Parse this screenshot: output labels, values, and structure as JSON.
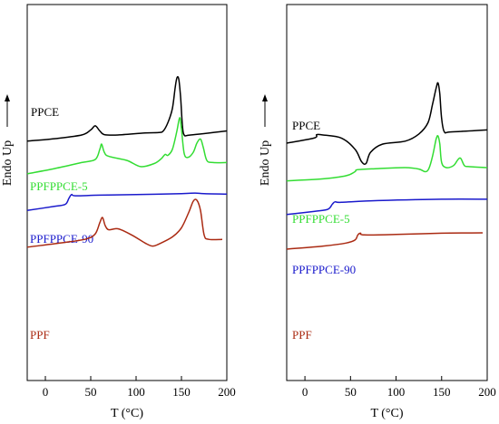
{
  "chart_data": [
    {
      "type": "line",
      "panel": "left",
      "xlabel": "T (°C)",
      "ylabel": "Endo Up",
      "xlim": [
        -20,
        200
      ],
      "xticks": [
        0,
        50,
        100,
        150,
        200
      ],
      "grid": false,
      "legend": "none (labels placed beside each curve)",
      "series": [
        {
          "name": "PPCE",
          "color": "#000000",
          "offset": 2.5,
          "points": [
            [
              -20,
              0
            ],
            [
              10,
              0.12
            ],
            [
              40,
              0.3
            ],
            [
              50,
              0.55
            ],
            [
              55,
              0.75
            ],
            [
              60,
              0.5
            ],
            [
              65,
              0.32
            ],
            [
              80,
              0.3
            ],
            [
              110,
              0.4
            ],
            [
              125,
              0.42
            ],
            [
              130,
              0.5
            ],
            [
              135,
              0.9
            ],
            [
              140,
              1.6
            ],
            [
              143,
              2.6
            ],
            [
              145,
              3.1
            ],
            [
              147,
              3.05
            ],
            [
              149,
              2.2
            ],
            [
              151,
              0.8
            ],
            [
              153,
              0.3
            ],
            [
              160,
              0.3
            ],
            [
              200,
              0.5
            ]
          ]
        },
        {
          "name": "PPFPPCE-5",
          "color": "#33dd33",
          "offset": 0.9,
          "points": [
            [
              -20,
              0
            ],
            [
              10,
              0.25
            ],
            [
              40,
              0.55
            ],
            [
              55,
              0.7
            ],
            [
              60,
              1.2
            ],
            [
              62,
              1.45
            ],
            [
              65,
              1.05
            ],
            [
              70,
              0.85
            ],
            [
              90,
              0.65
            ],
            [
              105,
              0.35
            ],
            [
              120,
              0.5
            ],
            [
              128,
              0.75
            ],
            [
              132,
              0.95
            ],
            [
              135,
              0.9
            ],
            [
              140,
              1.2
            ],
            [
              145,
              2.1
            ],
            [
              148,
              2.75
            ],
            [
              150,
              2.2
            ],
            [
              153,
              1.0
            ],
            [
              157,
              0.8
            ],
            [
              163,
              1.05
            ],
            [
              167,
              1.5
            ],
            [
              171,
              1.7
            ],
            [
              174,
              1.3
            ],
            [
              178,
              0.65
            ],
            [
              185,
              0.55
            ],
            [
              200,
              0.55
            ]
          ]
        },
        {
          "name": "PPFPPCE-90",
          "color": "#1a1acc",
          "offset": -0.9,
          "points": [
            [
              -20,
              0
            ],
            [
              10,
              0.2
            ],
            [
              22,
              0.3
            ],
            [
              26,
              0.6
            ],
            [
              29,
              0.78
            ],
            [
              33,
              0.72
            ],
            [
              60,
              0.75
            ],
            [
              100,
              0.78
            ],
            [
              150,
              0.82
            ],
            [
              165,
              0.85
            ],
            [
              175,
              0.82
            ],
            [
              200,
              0.8
            ]
          ]
        },
        {
          "name": "PPF",
          "color": "#aa2a12",
          "offset": -2.7,
          "points": [
            [
              -20,
              0
            ],
            [
              20,
              0.22
            ],
            [
              45,
              0.4
            ],
            [
              55,
              0.65
            ],
            [
              60,
              1.2
            ],
            [
              63,
              1.45
            ],
            [
              66,
              1.05
            ],
            [
              70,
              0.85
            ],
            [
              80,
              0.9
            ],
            [
              95,
              0.6
            ],
            [
              110,
              0.2
            ],
            [
              118,
              0.05
            ],
            [
              125,
              0.15
            ],
            [
              140,
              0.5
            ],
            [
              150,
              0.95
            ],
            [
              158,
              1.7
            ],
            [
              163,
              2.25
            ],
            [
              167,
              2.3
            ],
            [
              171,
              1.8
            ],
            [
              175,
              0.6
            ],
            [
              180,
              0.38
            ],
            [
              195,
              0.38
            ]
          ]
        }
      ]
    },
    {
      "type": "line",
      "panel": "right",
      "xlabel": "T (°C)",
      "ylabel": "Endo Up",
      "xlim": [
        -20,
        200
      ],
      "xticks": [
        0,
        50,
        100,
        150,
        200
      ],
      "grid": false,
      "legend": "none (labels placed beside each curve)",
      "series": [
        {
          "name": "PPCE",
          "color": "#000000",
          "offset": 2.4,
          "points": [
            [
              -20,
              0
            ],
            [
              10,
              0.25
            ],
            [
              13,
              0.42
            ],
            [
              20,
              0.4
            ],
            [
              40,
              0.25
            ],
            [
              55,
              -0.3
            ],
            [
              62,
              -0.9
            ],
            [
              67,
              -1.0
            ],
            [
              72,
              -0.45
            ],
            [
              85,
              -0.05
            ],
            [
              110,
              0.1
            ],
            [
              125,
              0.45
            ],
            [
              135,
              1.0
            ],
            [
              140,
              1.9
            ],
            [
              144,
              2.7
            ],
            [
              146,
              2.95
            ],
            [
              148,
              2.4
            ],
            [
              150,
              1.2
            ],
            [
              153,
              0.55
            ],
            [
              160,
              0.55
            ],
            [
              200,
              0.65
            ]
          ]
        },
        {
          "name": "PPFPPCE-5",
          "color": "#33dd33",
          "offset": 0.55,
          "points": [
            [
              -20,
              0
            ],
            [
              20,
              0.1
            ],
            [
              45,
              0.25
            ],
            [
              55,
              0.45
            ],
            [
              58,
              0.55
            ],
            [
              80,
              0.6
            ],
            [
              110,
              0.65
            ],
            [
              125,
              0.58
            ],
            [
              132,
              0.45
            ],
            [
              136,
              0.6
            ],
            [
              140,
              1.2
            ],
            [
              144,
              2.05
            ],
            [
              146,
              2.2
            ],
            [
              148,
              1.8
            ],
            [
              150,
              0.9
            ],
            [
              155,
              0.65
            ],
            [
              163,
              0.75
            ],
            [
              168,
              1.05
            ],
            [
              171,
              1.1
            ],
            [
              175,
              0.75
            ],
            [
              180,
              0.7
            ],
            [
              200,
              0.65
            ]
          ]
        },
        {
          "name": "PPFPPCE-90",
          "color": "#1a1acc",
          "offset": -1.1,
          "points": [
            [
              -20,
              0
            ],
            [
              10,
              0.15
            ],
            [
              25,
              0.25
            ],
            [
              30,
              0.5
            ],
            [
              33,
              0.62
            ],
            [
              40,
              0.6
            ],
            [
              80,
              0.68
            ],
            [
              150,
              0.75
            ],
            [
              200,
              0.75
            ]
          ]
        },
        {
          "name": "PPF",
          "color": "#aa2a12",
          "offset": -2.8,
          "points": [
            [
              -20,
              0
            ],
            [
              20,
              0.15
            ],
            [
              45,
              0.3
            ],
            [
              55,
              0.45
            ],
            [
              58,
              0.7
            ],
            [
              61,
              0.78
            ],
            [
              65,
              0.7
            ],
            [
              100,
              0.72
            ],
            [
              150,
              0.78
            ],
            [
              195,
              0.8
            ]
          ]
        }
      ]
    }
  ]
}
